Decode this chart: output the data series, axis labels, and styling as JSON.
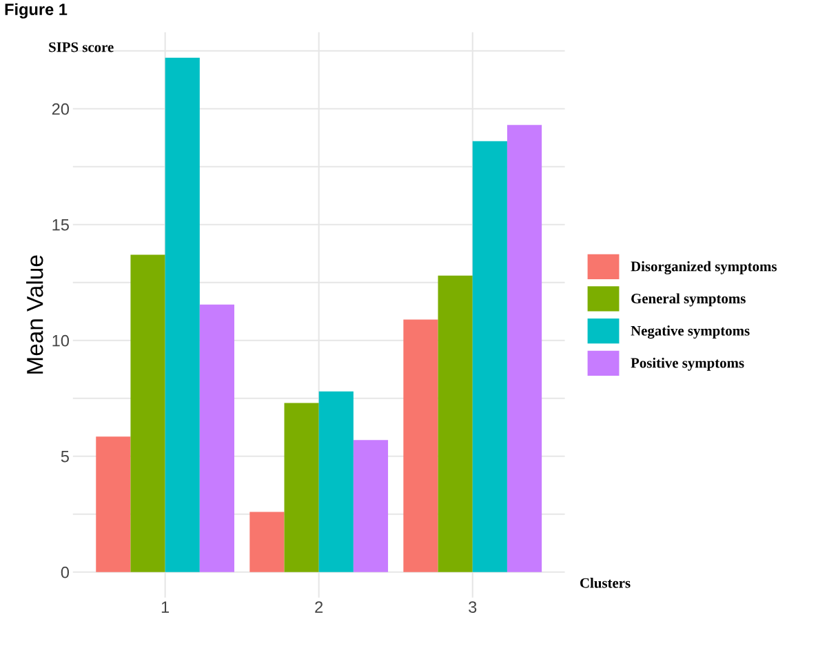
{
  "chart_data": {
    "type": "bar",
    "title": "Figure 1",
    "ylabel": "Mean Value",
    "annotations": [
      "SIPS score",
      "Clusters"
    ],
    "categories": [
      "1",
      "2",
      "3"
    ],
    "series": [
      {
        "name": "Disorganized symptoms",
        "color": "#f8766d",
        "values": [
          5.85,
          2.6,
          10.9
        ]
      },
      {
        "name": "General symptoms",
        "color": "#7cae00",
        "values": [
          13.7,
          7.3,
          12.8
        ]
      },
      {
        "name": "Negative symptoms",
        "color": "#00bfc4",
        "values": [
          22.2,
          7.8,
          18.6
        ]
      },
      {
        "name": "Positive symptoms",
        "color": "#c77cff",
        "values": [
          11.55,
          5.7,
          19.3
        ]
      }
    ],
    "ylim": [
      -1.1,
      23.3
    ],
    "yticks": [
      0,
      {
        "value": 2.5,
        "label": null
      },
      5,
      {
        "value": 7.5,
        "label": null
      },
      10,
      {
        "value": 12.5,
        "label": null
      },
      15,
      {
        "value": 17.5,
        "label": null
      },
      20,
      {
        "value": 22.5,
        "label": null
      }
    ],
    "grid": true,
    "legend": "right"
  }
}
